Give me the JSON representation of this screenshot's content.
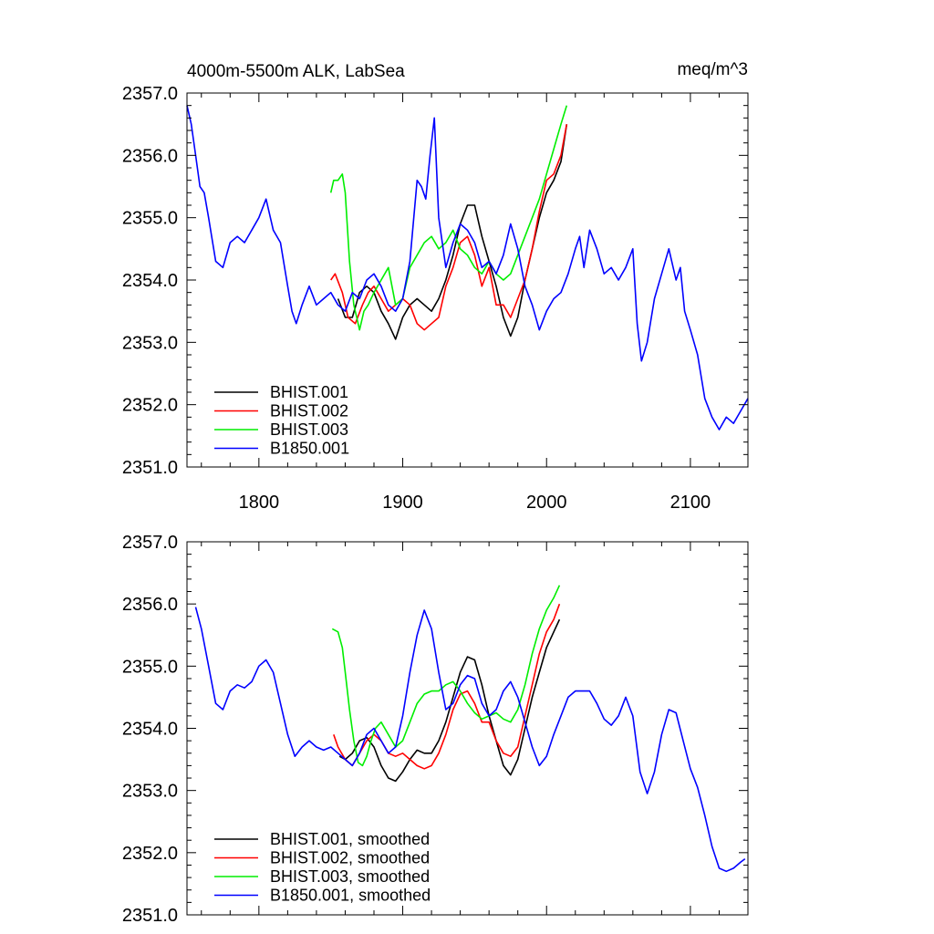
{
  "chart_data": [
    {
      "type": "line",
      "title": "4000m-5500m ALK, LabSea",
      "units": "meq/m^3",
      "xlim": [
        1750,
        2140
      ],
      "ylim": [
        2351.0,
        2357.0
      ],
      "xticks": [
        1800,
        1900,
        2000,
        2100
      ],
      "xtick_labels": [
        "1800",
        "1900",
        "2000",
        "2100"
      ],
      "yticks": [
        2351.0,
        2352.0,
        2353.0,
        2354.0,
        2355.0,
        2356.0,
        2357.0
      ],
      "ytick_labels": [
        "2351.0",
        "2352.0",
        "2353.0",
        "2354.0",
        "2355.0",
        "2356.0",
        "2357.0"
      ],
      "legend_position": "bottom-left",
      "series": [
        {
          "name": "BHIST.001",
          "color": "#000000",
          "x": [
            1855,
            1860,
            1865,
            1870,
            1875,
            1880,
            1885,
            1890,
            1895,
            1900,
            1905,
            1910,
            1915,
            1920,
            1925,
            1930,
            1935,
            1940,
            1945,
            1950,
            1955,
            1960,
            1965,
            1970,
            1975,
            1980,
            1985,
            1990,
            1995,
            2000,
            2005,
            2010,
            2014
          ],
          "y": [
            2353.7,
            2353.4,
            2353.4,
            2353.8,
            2353.9,
            2353.8,
            2353.5,
            2353.3,
            2353.05,
            2353.4,
            2353.6,
            2353.7,
            2353.6,
            2353.5,
            2353.7,
            2354.0,
            2354.4,
            2354.9,
            2355.2,
            2355.2,
            2354.7,
            2354.3,
            2353.9,
            2353.4,
            2353.1,
            2353.4,
            2354.0,
            2354.5,
            2355.0,
            2355.4,
            2355.6,
            2355.9,
            2356.5
          ]
        },
        {
          "name": "BHIST.002",
          "color": "#ff0000",
          "x": [
            1850,
            1853,
            1858,
            1862,
            1867,
            1872,
            1876,
            1880,
            1885,
            1890,
            1895,
            1900,
            1905,
            1910,
            1915,
            1920,
            1925,
            1930,
            1935,
            1940,
            1945,
            1950,
            1955,
            1960,
            1965,
            1970,
            1975,
            1980,
            1985,
            1990,
            1995,
            2000,
            2005,
            2010,
            2014
          ],
          "y": [
            2354.0,
            2354.1,
            2353.8,
            2353.4,
            2353.3,
            2353.6,
            2353.8,
            2353.9,
            2353.7,
            2353.5,
            2353.6,
            2353.7,
            2353.6,
            2353.3,
            2353.2,
            2353.3,
            2353.4,
            2353.9,
            2354.2,
            2354.6,
            2354.7,
            2354.4,
            2353.9,
            2354.2,
            2353.6,
            2353.6,
            2353.4,
            2353.7,
            2354.0,
            2354.5,
            2355.1,
            2355.6,
            2355.7,
            2356.0,
            2356.5
          ]
        },
        {
          "name": "BHIST.003",
          "color": "#00ee00",
          "x": [
            1850,
            1852,
            1855,
            1858,
            1860,
            1863,
            1866,
            1868,
            1870,
            1873,
            1876,
            1880,
            1885,
            1890,
            1895,
            1900,
            1905,
            1910,
            1915,
            1920,
            1925,
            1930,
            1935,
            1940,
            1945,
            1950,
            1955,
            1960,
            1965,
            1970,
            1975,
            1980,
            1985,
            1990,
            1995,
            2000,
            2005,
            2010,
            2014
          ],
          "y": [
            2355.4,
            2355.6,
            2355.6,
            2355.7,
            2355.4,
            2354.3,
            2353.6,
            2353.4,
            2353.2,
            2353.5,
            2353.6,
            2353.8,
            2354.0,
            2354.2,
            2353.6,
            2353.7,
            2354.2,
            2354.4,
            2354.6,
            2354.7,
            2354.5,
            2354.6,
            2354.8,
            2354.5,
            2354.4,
            2354.2,
            2354.1,
            2354.3,
            2354.1,
            2354.0,
            2354.1,
            2354.4,
            2354.7,
            2355.0,
            2355.3,
            2355.7,
            2356.1,
            2356.5,
            2356.8
          ]
        },
        {
          "name": "B1850.001",
          "color": "#0000ff",
          "x": [
            1750,
            1753,
            1756,
            1759,
            1762,
            1765,
            1770,
            1775,
            1780,
            1785,
            1790,
            1795,
            1800,
            1805,
            1810,
            1815,
            1820,
            1823,
            1826,
            1830,
            1835,
            1840,
            1845,
            1850,
            1855,
            1860,
            1865,
            1870,
            1875,
            1880,
            1885,
            1890,
            1895,
            1900,
            1905,
            1910,
            1913,
            1916,
            1919,
            1922,
            1925,
            1930,
            1935,
            1940,
            1945,
            1950,
            1955,
            1960,
            1965,
            1970,
            1975,
            1980,
            1985,
            1990,
            1995,
            2000,
            2005,
            2010,
            2015,
            2020,
            2023,
            2026,
            2030,
            2035,
            2040,
            2045,
            2050,
            2055,
            2060,
            2063,
            2066,
            2070,
            2075,
            2080,
            2085,
            2090,
            2093,
            2096,
            2100,
            2105,
            2110,
            2115,
            2120,
            2125,
            2130,
            2135,
            2140
          ],
          "y": [
            2356.8,
            2356.5,
            2356.0,
            2355.5,
            2355.4,
            2355.0,
            2354.3,
            2354.2,
            2354.6,
            2354.7,
            2354.6,
            2354.8,
            2355.0,
            2355.3,
            2354.8,
            2354.6,
            2353.9,
            2353.5,
            2353.3,
            2353.6,
            2353.9,
            2353.6,
            2353.7,
            2353.8,
            2353.6,
            2353.5,
            2353.8,
            2353.7,
            2354.0,
            2354.1,
            2353.9,
            2353.6,
            2353.5,
            2353.7,
            2354.3,
            2355.6,
            2355.5,
            2355.3,
            2356.0,
            2356.6,
            2355.0,
            2354.2,
            2354.6,
            2354.9,
            2354.8,
            2354.6,
            2354.2,
            2354.3,
            2354.1,
            2354.4,
            2354.9,
            2354.5,
            2353.9,
            2353.6,
            2353.2,
            2353.5,
            2353.7,
            2353.8,
            2354.1,
            2354.5,
            2354.7,
            2354.2,
            2354.8,
            2354.5,
            2354.1,
            2354.2,
            2354.0,
            2354.2,
            2354.5,
            2353.3,
            2352.7,
            2353.0,
            2353.7,
            2354.1,
            2354.5,
            2354.0,
            2354.2,
            2353.5,
            2353.2,
            2352.8,
            2352.1,
            2351.8,
            2351.6,
            2351.8,
            2351.7,
            2351.9,
            2352.1
          ]
        }
      ]
    },
    {
      "type": "line",
      "title": "",
      "xlim": [
        1750,
        2140
      ],
      "ylim": [
        2351.0,
        2357.0
      ],
      "xticks": [
        1800,
        1900,
        2000,
        2100
      ],
      "yticks": [
        2351.0,
        2352.0,
        2353.0,
        2354.0,
        2355.0,
        2356.0,
        2357.0
      ],
      "ytick_labels": [
        "2351.0",
        "2352.0",
        "2353.0",
        "2354.0",
        "2355.0",
        "2356.0",
        "2357.0"
      ],
      "legend_position": "bottom-left",
      "series": [
        {
          "name": "BHIST.001, smoothed",
          "color": "#000000",
          "x": [
            1856,
            1860,
            1865,
            1870,
            1875,
            1880,
            1885,
            1890,
            1895,
            1900,
            1905,
            1910,
            1915,
            1920,
            1925,
            1930,
            1935,
            1940,
            1945,
            1950,
            1955,
            1960,
            1965,
            1970,
            1975,
            1980,
            1985,
            1990,
            1995,
            2000,
            2005,
            2009
          ],
          "y": [
            2353.55,
            2353.5,
            2353.6,
            2353.8,
            2353.85,
            2353.7,
            2353.4,
            2353.2,
            2353.15,
            2353.3,
            2353.5,
            2353.65,
            2353.6,
            2353.6,
            2353.8,
            2354.1,
            2354.5,
            2354.9,
            2355.15,
            2355.1,
            2354.7,
            2354.2,
            2353.8,
            2353.4,
            2353.25,
            2353.5,
            2354.0,
            2354.5,
            2354.9,
            2355.3,
            2355.55,
            2355.75
          ]
        },
        {
          "name": "BHIST.002, smoothed",
          "color": "#ff0000",
          "x": [
            1852,
            1855,
            1860,
            1865,
            1870,
            1875,
            1880,
            1885,
            1890,
            1895,
            1900,
            1905,
            1910,
            1915,
            1920,
            1925,
            1930,
            1935,
            1940,
            1945,
            1950,
            1955,
            1960,
            1965,
            1970,
            1975,
            1980,
            1985,
            1990,
            1995,
            2000,
            2005,
            2009
          ],
          "y": [
            2353.9,
            2353.7,
            2353.5,
            2353.4,
            2353.6,
            2353.8,
            2353.9,
            2353.8,
            2353.6,
            2353.55,
            2353.6,
            2353.5,
            2353.4,
            2353.35,
            2353.4,
            2353.6,
            2353.9,
            2354.3,
            2354.55,
            2354.6,
            2354.4,
            2354.1,
            2354.1,
            2353.8,
            2353.6,
            2353.55,
            2353.7,
            2354.2,
            2354.7,
            2355.2,
            2355.55,
            2355.75,
            2356.0
          ]
        },
        {
          "name": "BHIST.003, smoothed",
          "color": "#00ee00",
          "x": [
            1851,
            1855,
            1858,
            1860,
            1863,
            1866,
            1869,
            1872,
            1875,
            1878,
            1881,
            1885,
            1890,
            1895,
            1900,
            1905,
            1910,
            1915,
            1920,
            1925,
            1930,
            1935,
            1940,
            1945,
            1950,
            1955,
            1960,
            1965,
            1970,
            1975,
            1980,
            1985,
            1990,
            1995,
            2000,
            2005,
            2009
          ],
          "y": [
            2355.6,
            2355.55,
            2355.3,
            2354.9,
            2354.3,
            2353.8,
            2353.45,
            2353.4,
            2353.55,
            2353.8,
            2354.0,
            2354.1,
            2353.9,
            2353.7,
            2353.8,
            2354.1,
            2354.4,
            2354.55,
            2354.6,
            2354.6,
            2354.7,
            2354.75,
            2354.6,
            2354.4,
            2354.25,
            2354.15,
            2354.2,
            2354.25,
            2354.15,
            2354.1,
            2354.3,
            2354.7,
            2355.2,
            2355.6,
            2355.9,
            2356.1,
            2356.3
          ]
        },
        {
          "name": "B1850.001, smoothed",
          "color": "#0000ff",
          "x": [
            1756,
            1760,
            1765,
            1770,
            1775,
            1780,
            1785,
            1790,
            1795,
            1800,
            1805,
            1810,
            1815,
            1820,
            1825,
            1830,
            1835,
            1840,
            1845,
            1850,
            1855,
            1860,
            1865,
            1870,
            1875,
            1880,
            1885,
            1890,
            1895,
            1900,
            1905,
            1910,
            1915,
            1920,
            1925,
            1930,
            1935,
            1940,
            1945,
            1950,
            1955,
            1960,
            1965,
            1970,
            1975,
            1980,
            1985,
            1990,
            1995,
            2000,
            2005,
            2010,
            2015,
            2020,
            2025,
            2030,
            2035,
            2040,
            2045,
            2050,
            2055,
            2060,
            2065,
            2070,
            2075,
            2080,
            2085,
            2090,
            2095,
            2100,
            2105,
            2110,
            2115,
            2120,
            2125,
            2130,
            2135,
            2138
          ],
          "y": [
            2355.95,
            2355.6,
            2355.0,
            2354.4,
            2354.3,
            2354.6,
            2354.7,
            2354.65,
            2354.75,
            2355.0,
            2355.1,
            2354.9,
            2354.4,
            2353.9,
            2353.55,
            2353.7,
            2353.8,
            2353.7,
            2353.65,
            2353.7,
            2353.6,
            2353.5,
            2353.4,
            2353.6,
            2353.9,
            2354.0,
            2353.8,
            2353.6,
            2353.7,
            2354.2,
            2354.9,
            2355.5,
            2355.9,
            2355.6,
            2354.9,
            2354.3,
            2354.4,
            2354.7,
            2354.85,
            2354.8,
            2354.4,
            2354.2,
            2354.3,
            2354.6,
            2354.75,
            2354.5,
            2354.1,
            2353.7,
            2353.4,
            2353.55,
            2353.9,
            2354.2,
            2354.5,
            2354.6,
            2354.6,
            2354.6,
            2354.4,
            2354.15,
            2354.05,
            2354.2,
            2354.5,
            2354.2,
            2353.3,
            2352.95,
            2353.3,
            2353.9,
            2354.3,
            2354.25,
            2353.8,
            2353.35,
            2353.05,
            2352.6,
            2352.1,
            2351.75,
            2351.7,
            2351.75,
            2351.85,
            2351.9
          ]
        }
      ]
    }
  ]
}
